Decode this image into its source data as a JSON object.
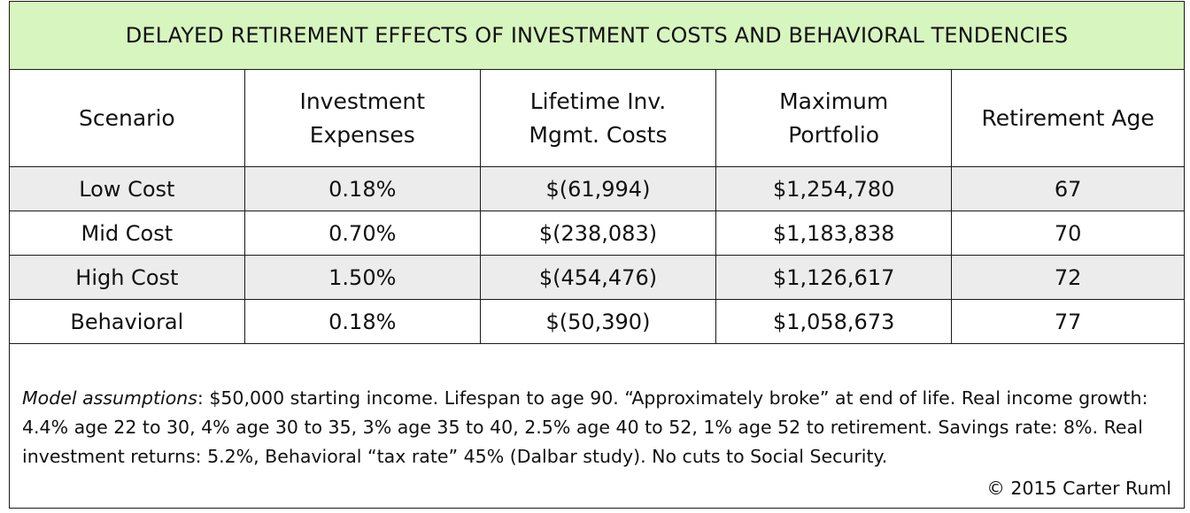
{
  "title": "DELAYED RETIREMENT EFFECTS OF INVESTMENT COSTS AND BEHAVIORAL TENDENCIES",
  "table": {
    "headers": [
      [
        "Scenario"
      ],
      [
        "Investment",
        "Expenses"
      ],
      [
        "Lifetime Inv.",
        "Mgmt. Costs"
      ],
      [
        "Maximum",
        "Portfolio"
      ],
      [
        "Retirement Age"
      ]
    ],
    "rows": [
      [
        "Low Cost",
        "0.18%",
        "$(61,994)",
        "$1,254,780",
        "67"
      ],
      [
        "Mid Cost",
        "0.70%",
        "$(238,083)",
        "$1,183,838",
        "70"
      ],
      [
        "High Cost",
        "1.50%",
        "$(454,476)",
        "$1,126,617",
        "72"
      ],
      [
        "Behavioral",
        "0.18%",
        "$(50,390)",
        "$1,058,673",
        "77"
      ]
    ]
  },
  "notes": {
    "lead": "Model assumptions",
    "text": ": $50,000 starting income. Lifespan to age 90. “Approximately broke” at end of life. Real income growth: 4.4% age 22 to 30, 4% age 30 to 35, 3% age 35 to 40, 2.5% age 40 to 52, 1% age 52 to retirement. Savings rate: 8%. Real investment returns: 5.2%, Behavioral “tax rate” 45% (Dalbar study). No cuts to Social Security."
  },
  "copyright": "© 2015 Carter Ruml",
  "colors": {
    "title_background": "#d7f5bf",
    "shaded_row": "#ececec",
    "border": "#1a1a1a"
  }
}
